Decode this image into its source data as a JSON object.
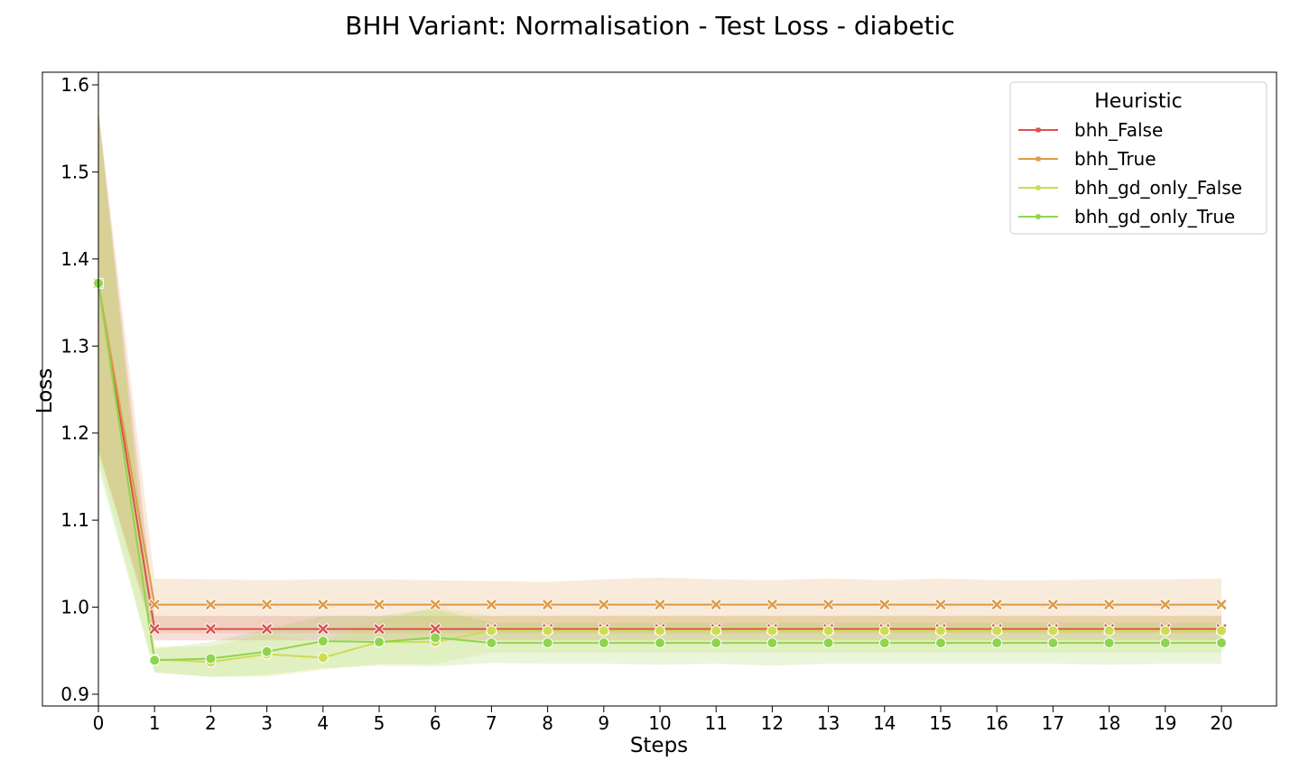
{
  "chart_data": {
    "type": "line",
    "title": "BHH Variant: Normalisation - Test Loss - diabetic",
    "xlabel": "Steps",
    "ylabel": "Loss",
    "xlim": [
      0,
      20
    ],
    "ylim": [
      0.89,
      1.62
    ],
    "x": [
      0,
      1,
      2,
      3,
      4,
      5,
      6,
      7,
      8,
      9,
      10,
      11,
      12,
      13,
      14,
      15,
      16,
      17,
      18,
      19,
      20
    ],
    "xticks": [
      "0",
      "1",
      "2",
      "3",
      "4",
      "5",
      "6",
      "7",
      "8",
      "9",
      "10",
      "11",
      "12",
      "13",
      "14",
      "15",
      "16",
      "17",
      "18",
      "19",
      "20"
    ],
    "yticks": [
      0.9,
      1.0,
      1.1,
      1.2,
      1.3,
      1.4,
      1.5,
      1.6
    ],
    "ytick_labels": [
      "0.9",
      "1.0",
      "1.1",
      "1.2",
      "1.3",
      "1.4",
      "1.5",
      "1.6"
    ],
    "grid": false,
    "legend": {
      "title": "Heuristic",
      "placement": "top-right"
    },
    "series": [
      {
        "name": "bhh_False",
        "color": "#d9534f",
        "marker": "x",
        "values": [
          1.372,
          0.975,
          0.975,
          0.975,
          0.975,
          0.975,
          0.975,
          0.975,
          0.975,
          0.975,
          0.975,
          0.975,
          0.975,
          0.975,
          0.975,
          0.975,
          0.975,
          0.975,
          0.975,
          0.975,
          0.975
        ],
        "lower": [
          1.18,
          0.962,
          0.962,
          0.962,
          0.962,
          0.962,
          0.962,
          0.962,
          0.962,
          0.962,
          0.962,
          0.962,
          0.962,
          0.962,
          0.962,
          0.962,
          0.962,
          0.962,
          0.962,
          0.962,
          0.962
        ],
        "upper": [
          1.57,
          0.99,
          0.99,
          0.99,
          0.99,
          0.99,
          0.99,
          0.99,
          0.99,
          0.99,
          0.99,
          0.99,
          0.99,
          0.99,
          0.99,
          0.99,
          0.99,
          0.99,
          0.99,
          0.99,
          0.99
        ]
      },
      {
        "name": "bhh_True",
        "color": "#dd9a4a",
        "marker": "x",
        "values": [
          1.372,
          1.003,
          1.003,
          1.003,
          1.003,
          1.003,
          1.003,
          1.003,
          1.003,
          1.003,
          1.003,
          1.003,
          1.003,
          1.003,
          1.003,
          1.003,
          1.003,
          1.003,
          1.003,
          1.003,
          1.003
        ],
        "lower": [
          1.18,
          0.97,
          0.97,
          0.97,
          0.97,
          0.97,
          0.97,
          0.97,
          0.97,
          0.97,
          0.97,
          0.97,
          0.97,
          0.97,
          0.97,
          0.97,
          0.97,
          0.97,
          0.97,
          0.97,
          0.97
        ],
        "upper": [
          1.57,
          1.033,
          1.032,
          1.031,
          1.032,
          1.032,
          1.031,
          1.03,
          1.029,
          1.032,
          1.034,
          1.032,
          1.031,
          1.033,
          1.031,
          1.033,
          1.031,
          1.031,
          1.032,
          1.032,
          1.033
        ]
      },
      {
        "name": "bhh_gd_only_False",
        "color": "#cddc52",
        "marker": "o",
        "values": [
          1.372,
          0.94,
          0.937,
          0.946,
          0.942,
          0.96,
          0.96,
          0.973,
          0.973,
          0.973,
          0.973,
          0.973,
          0.973,
          0.973,
          0.973,
          0.973,
          0.973,
          0.973,
          0.973,
          0.973,
          0.973
        ],
        "lower": [
          1.17,
          0.925,
          0.92,
          0.92,
          0.928,
          0.935,
          0.935,
          0.948,
          0.948,
          0.948,
          0.948,
          0.948,
          0.948,
          0.948,
          0.948,
          0.948,
          0.948,
          0.948,
          0.948,
          0.948,
          0.948
        ],
        "upper": [
          1.57,
          0.955,
          0.955,
          0.97,
          0.96,
          0.985,
          1.0,
          0.99,
          0.99,
          0.99,
          0.99,
          0.99,
          0.99,
          0.99,
          0.99,
          0.99,
          0.99,
          0.99,
          0.99,
          0.99,
          0.99
        ]
      },
      {
        "name": "bhh_gd_only_True",
        "color": "#8fd44f",
        "marker": "o",
        "values": [
          1.372,
          0.939,
          0.941,
          0.949,
          0.961,
          0.96,
          0.965,
          0.959,
          0.959,
          0.959,
          0.959,
          0.959,
          0.959,
          0.959,
          0.959,
          0.959,
          0.959,
          0.959,
          0.959,
          0.959,
          0.959
        ],
        "lower": [
          1.16,
          0.925,
          0.92,
          0.922,
          0.93,
          0.933,
          0.932,
          0.936,
          0.935,
          0.935,
          0.934,
          0.935,
          0.933,
          0.935,
          0.935,
          0.935,
          0.935,
          0.935,
          0.934,
          0.935,
          0.935
        ],
        "upper": [
          1.57,
          0.952,
          0.96,
          0.975,
          0.99,
          0.99,
          0.998,
          0.982,
          0.982,
          0.982,
          0.982,
          0.982,
          0.982,
          0.982,
          0.982,
          0.982,
          0.982,
          0.982,
          0.982,
          0.982,
          0.982
        ]
      }
    ]
  }
}
